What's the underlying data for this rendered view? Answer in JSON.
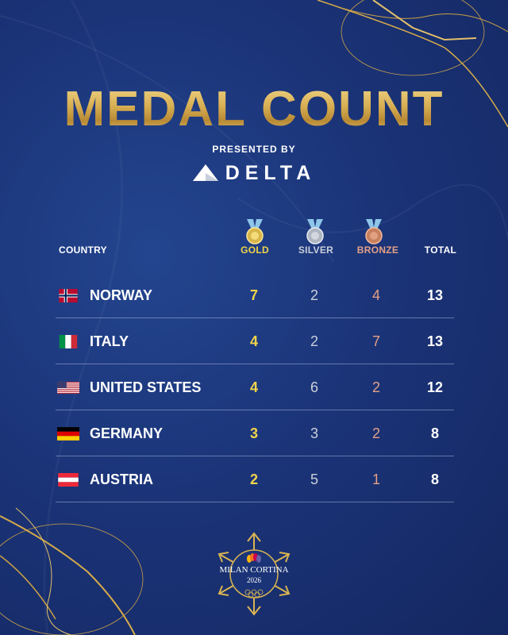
{
  "title": "MEDAL COUNT",
  "presented_by": "PRESENTED BY",
  "sponsor": {
    "name": "DELTA",
    "logo_icon": "delta-triangle-icon"
  },
  "table": {
    "headers": {
      "country": "COUNTRY",
      "gold": "GOLD",
      "silver": "SILVER",
      "bronze": "BRONZE",
      "total": "TOTAL"
    },
    "rows": [
      {
        "country": "NORWAY",
        "flag": "norway-flag-icon",
        "gold": "7",
        "silver": "2",
        "bronze": "4",
        "total": "13"
      },
      {
        "country": "ITALY",
        "flag": "italy-flag-icon",
        "gold": "4",
        "silver": "2",
        "bronze": "7",
        "total": "13"
      },
      {
        "country": "UNITED STATES",
        "flag": "usa-flag-icon",
        "gold": "4",
        "silver": "6",
        "bronze": "2",
        "total": "12"
      },
      {
        "country": "GERMANY",
        "flag": "germany-flag-icon",
        "gold": "3",
        "silver": "3",
        "bronze": "2",
        "total": "8"
      },
      {
        "country": "AUSTRIA",
        "flag": "austria-flag-icon",
        "gold": "2",
        "silver": "5",
        "bronze": "1",
        "total": "8"
      }
    ]
  },
  "footer_logo": {
    "line1": "MILAN CORTINA",
    "line2": "2026",
    "icon": "milan-cortina-snowflake-logo"
  },
  "colors": {
    "background": "#1b3478",
    "gold": "#f1d44a",
    "silver": "#c9cfd9",
    "bronze": "#e4a086",
    "title_gold": "#d8b35a",
    "ribbon": "#8ec6ea"
  }
}
